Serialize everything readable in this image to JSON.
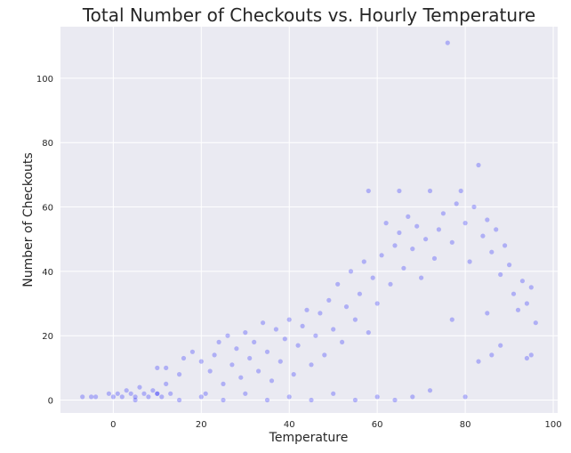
{
  "chart_data": {
    "type": "scatter",
    "title": "Total Number of Checkouts vs. Hourly Temperature",
    "xlabel": "Temperature",
    "ylabel": "Number of Checkouts",
    "xlim": [
      -12,
      101
    ],
    "ylim": [
      -4,
      116
    ],
    "xticks": [
      "0",
      "20",
      "40",
      "60",
      "80",
      "100"
    ],
    "yticks": [
      "0",
      "20",
      "40",
      "60",
      "80",
      "100"
    ],
    "grid": true,
    "style": {
      "background": "#EAEAF2",
      "grid_color": "#ffffff",
      "marker_color": "#0000ff",
      "marker_alpha": 0.25
    },
    "series": [
      {
        "points": [
          [
            -7,
            1
          ],
          [
            -5,
            1
          ],
          [
            -4,
            1
          ],
          [
            -1,
            2
          ],
          [
            0,
            1
          ],
          [
            1,
            2
          ],
          [
            2,
            1
          ],
          [
            3,
            3
          ],
          [
            4,
            2
          ],
          [
            5,
            1
          ],
          [
            6,
            4
          ],
          [
            7,
            2
          ],
          [
            8,
            1
          ],
          [
            9,
            3
          ],
          [
            10,
            2
          ],
          [
            11,
            1
          ],
          [
            12,
            5
          ],
          [
            13,
            2
          ],
          [
            10,
            10
          ],
          [
            12,
            10
          ],
          [
            15,
            8
          ],
          [
            16,
            13
          ],
          [
            18,
            15
          ],
          [
            20,
            12
          ],
          [
            21,
            2
          ],
          [
            22,
            9
          ],
          [
            23,
            14
          ],
          [
            24,
            18
          ],
          [
            25,
            5
          ],
          [
            26,
            20
          ],
          [
            27,
            11
          ],
          [
            28,
            16
          ],
          [
            29,
            7
          ],
          [
            30,
            21
          ],
          [
            31,
            13
          ],
          [
            32,
            18
          ],
          [
            33,
            9
          ],
          [
            34,
            24
          ],
          [
            35,
            15
          ],
          [
            36,
            6
          ],
          [
            37,
            22
          ],
          [
            38,
            12
          ],
          [
            39,
            19
          ],
          [
            40,
            25
          ],
          [
            41,
            8
          ],
          [
            42,
            17
          ],
          [
            43,
            23
          ],
          [
            44,
            28
          ],
          [
            45,
            11
          ],
          [
            46,
            20
          ],
          [
            47,
            27
          ],
          [
            48,
            14
          ],
          [
            49,
            31
          ],
          [
            50,
            22
          ],
          [
            51,
            36
          ],
          [
            52,
            18
          ],
          [
            53,
            29
          ],
          [
            54,
            40
          ],
          [
            55,
            25
          ],
          [
            56,
            33
          ],
          [
            57,
            43
          ],
          [
            58,
            21
          ],
          [
            58,
            65
          ],
          [
            59,
            38
          ],
          [
            60,
            30
          ],
          [
            61,
            45
          ],
          [
            62,
            55
          ],
          [
            63,
            36
          ],
          [
            64,
            48
          ],
          [
            65,
            52
          ],
          [
            65,
            65
          ],
          [
            66,
            41
          ],
          [
            67,
            57
          ],
          [
            68,
            47
          ],
          [
            69,
            54
          ],
          [
            70,
            38
          ],
          [
            71,
            50
          ],
          [
            72,
            65
          ],
          [
            73,
            44
          ],
          [
            74,
            53
          ],
          [
            75,
            58
          ],
          [
            76,
            111
          ],
          [
            77,
            49
          ],
          [
            78,
            61
          ],
          [
            79,
            65
          ],
          [
            80,
            55
          ],
          [
            81,
            43
          ],
          [
            82,
            60
          ],
          [
            83,
            73
          ],
          [
            84,
            51
          ],
          [
            85,
            56
          ],
          [
            86,
            46
          ],
          [
            87,
            53
          ],
          [
            88,
            39
          ],
          [
            89,
            48
          ],
          [
            90,
            42
          ],
          [
            91,
            33
          ],
          [
            92,
            28
          ],
          [
            93,
            37
          ],
          [
            94,
            30
          ],
          [
            95,
            35
          ],
          [
            96,
            24
          ],
          [
            94,
            13
          ],
          [
            95,
            14
          ],
          [
            88,
            17
          ],
          [
            86,
            14
          ],
          [
            83,
            12
          ],
          [
            80,
            1
          ],
          [
            85,
            27
          ],
          [
            77,
            25
          ],
          [
            72,
            3
          ],
          [
            68,
            1
          ],
          [
            64,
            0
          ],
          [
            60,
            1
          ],
          [
            55,
            0
          ],
          [
            50,
            2
          ],
          [
            45,
            0
          ],
          [
            40,
            1
          ],
          [
            35,
            0
          ],
          [
            30,
            2
          ],
          [
            25,
            0
          ],
          [
            20,
            1
          ],
          [
            15,
            0
          ],
          [
            10,
            2
          ],
          [
            5,
            0
          ]
        ]
      }
    ]
  }
}
